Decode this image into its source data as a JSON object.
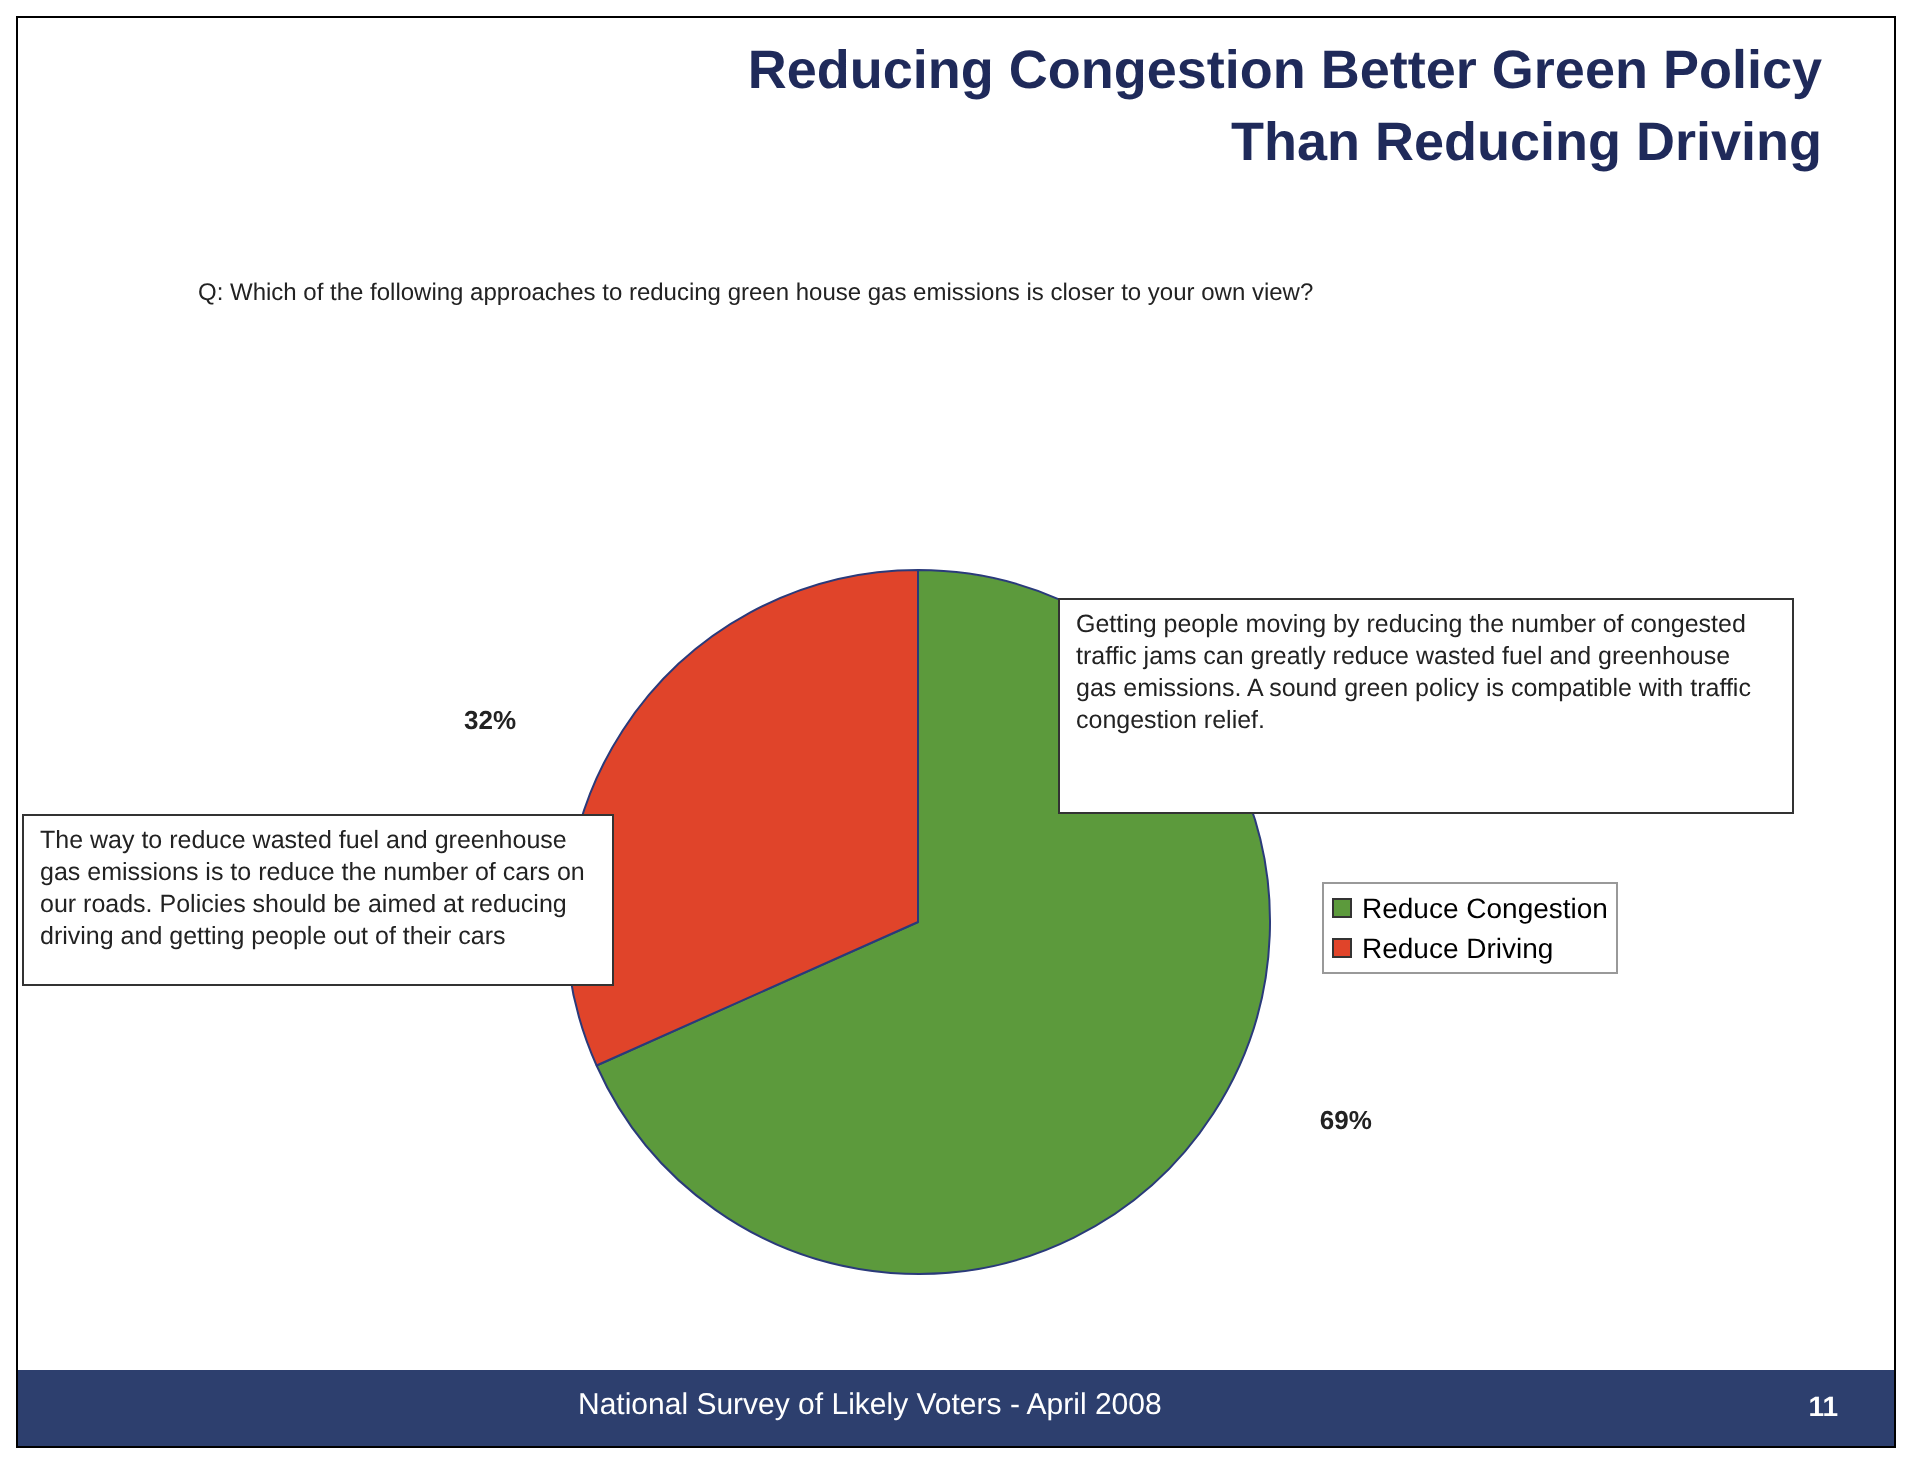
{
  "chart_data": {
    "type": "pie",
    "title": "Reducing Congestion Better Green Policy\nThan Reducing Driving",
    "subtitle": "Q: Which of the following approaches to reducing green house gas emissions is closer to your own view?",
    "categories": [
      "Reduce Congestion",
      "Reduce Driving"
    ],
    "values": [
      69,
      32
    ],
    "colors": [
      "#5c9a3c",
      "#e0442a"
    ],
    "value_labels": [
      "69%",
      "32%"
    ],
    "legend": "right",
    "annotations": [
      "Getting people moving by reducing the number of congested traffic jams can greatly reduce wasted fuel and greenhouse gas emissions.  A sound green policy is compatible with traffic congestion relief.",
      "The way to reduce wasted fuel and greenhouse gas emissions is to reduce the number of cars on our roads. Policies should be aimed at reducing driving and getting people out of their cars",
      "National Survey of Likely Voters - April 2008",
      "11"
    ]
  }
}
